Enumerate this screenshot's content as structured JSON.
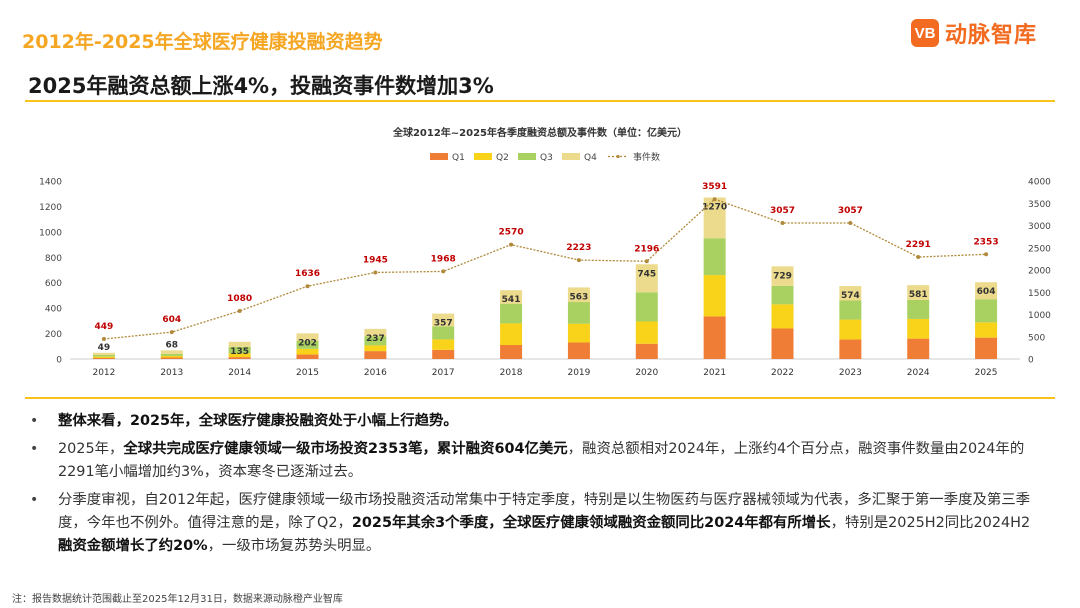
{
  "header": {
    "title": "2012年-2025年全球医疗健康投融资趋势",
    "logo_mark": "VB",
    "logo_text": "动脉智库"
  },
  "subtitle": "2025年融资总额上涨4%，投融资事件数增加3%",
  "colors": {
    "q1": "#f07d35",
    "q2": "#f9d21a",
    "q3": "#a9d161",
    "q4": "#ecdb8c",
    "line": "#b08a3a",
    "event_label": "#c00000",
    "accent": "#f7c21a"
  },
  "chart_data": {
    "type": "bar",
    "title": "全球2012年~2025年各季度融资总额及事件数（单位：亿美元）",
    "categories": [
      "2012",
      "2013",
      "2014",
      "2015",
      "2016",
      "2017",
      "2018",
      "2019",
      "2020",
      "2021",
      "2022",
      "2023",
      "2024",
      "2025"
    ],
    "series": [
      {
        "name": "Q1",
        "values": [
          8,
          12,
          15,
          35,
          62,
          72,
          110,
          130,
          120,
          335,
          240,
          153,
          160,
          168
        ]
      },
      {
        "name": "Q2",
        "values": [
          10,
          12,
          30,
          45,
          45,
          82,
          170,
          148,
          175,
          325,
          190,
          157,
          155,
          120
        ]
      },
      {
        "name": "Q3",
        "values": [
          14,
          17,
          50,
          62,
          70,
          103,
          155,
          170,
          230,
          290,
          145,
          150,
          150,
          180
        ]
      },
      {
        "name": "Q4",
        "values": [
          17,
          27,
          40,
          60,
          60,
          100,
          106,
          115,
          220,
          320,
          154,
          114,
          116,
          136
        ]
      }
    ],
    "totals": [
      49,
      68,
      135,
      202,
      237,
      357,
      541,
      563,
      745,
      1270,
      729,
      574,
      581,
      604
    ],
    "line_series": {
      "name": "事件数",
      "values": [
        449,
        604,
        1080,
        1636,
        1945,
        1968,
        2570,
        2223,
        2196,
        3591,
        3057,
        3057,
        2291,
        2353
      ]
    },
    "ylim": [
      0,
      1400
    ],
    "y_ticks": [
      0,
      200,
      400,
      600,
      800,
      1000,
      1200,
      1400
    ],
    "y2lim": [
      0,
      4000
    ],
    "y2_ticks": [
      0,
      500,
      1000,
      1500,
      2000,
      2500,
      3000,
      3500,
      4000
    ],
    "legend_position": "top-center"
  },
  "bullets": [
    {
      "parts": [
        {
          "text": "整体来看，2025年，全球医疗健康投融资处于小幅上行趋势。",
          "bold": true
        }
      ]
    },
    {
      "parts": [
        {
          "text": "2025年，",
          "bold": false
        },
        {
          "text": "全球共完成医疗健康领域一级市场投资2353笔，累计融资604亿美元",
          "bold": true
        },
        {
          "text": "，融资总额相对2024年，上涨约4个百分点，融资事件数量由2024年的2291笔小幅增加约3%，资本寒冬已逐渐过去。",
          "bold": false
        }
      ]
    },
    {
      "parts": [
        {
          "text": "分季度审视，自2012年起，医疗健康领域一级市场投融资活动常集中于特定季度，特别是以生物医药与医疗器械领域为代表，多汇聚于第一季度及第三季度，今年也不例外。值得注意的是，除了Q2，",
          "bold": false
        },
        {
          "text": "2025年其余3个季度，全球医疗健康领域融资金额同比2024年都有所增长",
          "bold": true
        },
        {
          "text": "，特别是2025H2同比2024H2",
          "bold": false
        },
        {
          "text": "融资金额增长了约20%",
          "bold": true
        },
        {
          "text": "，一级市场复苏势头明显。",
          "bold": false
        }
      ]
    }
  ],
  "footnote": "注：报告数据统计范围截止至2025年12月31日，数据来源动脉橙产业智库"
}
